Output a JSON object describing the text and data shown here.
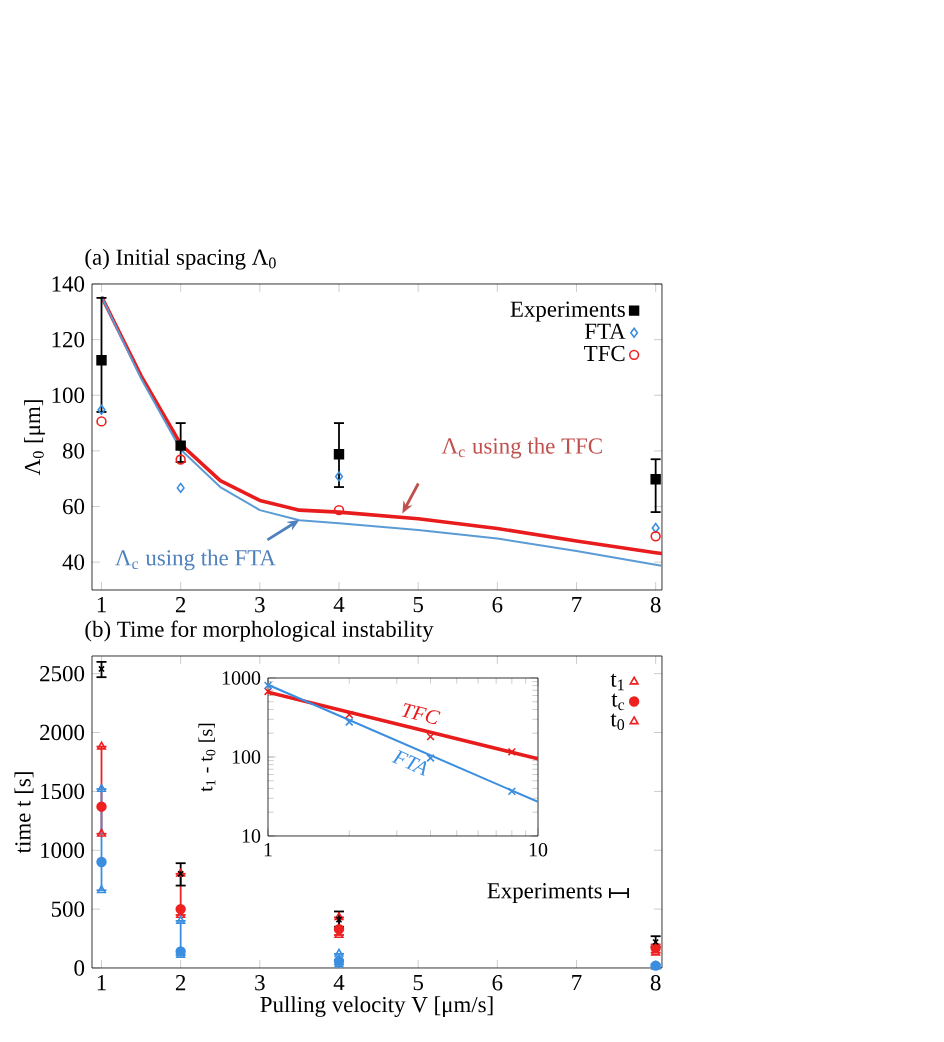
{
  "chart_data": [
    {
      "type": "scatter",
      "title": "(a) Initial spacing Λ$_{0}$",
      "ylabel": "Λ$_{0}$ [μm]",
      "x": [
        1,
        2,
        4,
        8
      ],
      "xlim": [
        0.88,
        8.08
      ],
      "ylim": [
        30,
        140
      ],
      "xticks": [
        1,
        2,
        3,
        4,
        5,
        6,
        7,
        8
      ],
      "yticks": [
        40,
        60,
        80,
        100,
        120,
        140
      ],
      "legend": "top right",
      "annotations": [
        {
          "text": "Λ$_{c}$ using the TFC",
          "x": 4.8,
          "y": 57.5
        },
        {
          "text": "Λ$_{c}$ using the FTA",
          "x": 3.5,
          "y": 55.2
        }
      ],
      "series": [
        {
          "type": "line",
          "marker": "none",
          "color": "#e81c1c",
          "x": [
            1,
            1.5,
            2,
            2.5,
            3,
            3.5,
            4,
            5,
            6,
            7,
            8,
            8.08
          ],
          "values": [
            135.5,
            107,
            82.4,
            69.3,
            62.2,
            58.7,
            58,
            55.6,
            52.1,
            47.6,
            43.4,
            43.1
          ]
        },
        {
          "type": "line",
          "marker": "none",
          "color": "#5b9bd5",
          "x": [
            1,
            1.5,
            2,
            2.5,
            3,
            3.5,
            4,
            5,
            6,
            7,
            8,
            8.08
          ],
          "values": [
            135.5,
            106,
            80.5,
            67,
            58.7,
            55.1,
            54,
            51.6,
            48.5,
            44,
            39.1,
            38.7
          ]
        },
        {
          "name": "Experiments",
          "marker": "square",
          "color": "#000000",
          "values": [
            112.6,
            81.9,
            78.8,
            69.8
          ],
          "errors": [
            [
              94,
              135
            ],
            [
              76,
              90
            ],
            [
              67,
              90
            ],
            [
              58,
              77
            ]
          ]
        },
        {
          "name": "FTA",
          "marker": "diamond",
          "color": "#3a8ee0",
          "values": [
            94.8,
            66.7,
            70.8,
            52.3
          ]
        },
        {
          "name": "TFC",
          "marker": "circle",
          "color": "#ee2020",
          "values": [
            90.6,
            76.9,
            58.7,
            49.3
          ]
        }
      ]
    },
    {
      "type": "scatter",
      "title": "(b) Time for morphological instability",
      "xlabel": "Pulling velocity V [μm/s]",
      "ylabel": "time t [s]",
      "x": [
        1,
        2,
        4,
        8
      ],
      "xlim": [
        0.88,
        8.08
      ],
      "ylim": [
        0,
        2650
      ],
      "xticks": [
        1,
        2,
        3,
        4,
        5,
        6,
        7,
        8
      ],
      "yticks": [
        0,
        500,
        1000,
        1500,
        2000,
        2500
      ],
      "legend": "top right",
      "series": [
        {
          "name": "t$_{1}$",
          "marker": "triangle",
          "color": "#ee2020",
          "values": [
            1880,
            800,
            430,
            null
          ]
        },
        {
          "name": "t$_{c}$",
          "marker": "circle",
          "color": "#ee2020",
          "values": [
            1370,
            500,
            330,
            170
          ],
          "errors": [
            [
              1140,
              1880
            ],
            [
              450,
              800
            ],
            [
              280,
              430
            ],
            [
              130,
              200
            ]
          ]
        },
        {
          "name": "t$_{0}$",
          "marker": "triangle",
          "color": "#ee2020",
          "values": [
            1140,
            450,
            280,
            130
          ]
        },
        {
          "marker": "triangle",
          "color": "#3a8ee0",
          "values": [
            1520,
            400,
            120,
            null
          ]
        },
        {
          "marker": "circle",
          "color": "#3a8ee0",
          "values": [
            900,
            140,
            60,
            20
          ],
          "errors": [
            [
              660,
              1520
            ],
            [
              110,
              400
            ],
            [
              30,
              120
            ],
            [
              10,
              30
            ]
          ]
        },
        {
          "marker": "triangle",
          "color": "#3a8ee0",
          "values": [
            660,
            110,
            30,
            10
          ]
        },
        {
          "name": "Experiments",
          "marker": "cross",
          "color": "#000000",
          "values": [
            2540,
            800,
            410,
            220
          ],
          "errors": [
            [
              2470,
              2600
            ],
            [
              700,
              890
            ],
            [
              350,
              480
            ],
            [
              180,
              270
            ]
          ]
        }
      ]
    },
    {
      "type": "line",
      "ylabel": "t$_{1}$ - t$_{0}$ [s]",
      "log": "xy",
      "xlim": [
        1,
        10
      ],
      "ylim": [
        10,
        1000
      ],
      "xticks": [
        1,
        10
      ],
      "yticks": [
        10,
        100,
        1000
      ],
      "legend": false,
      "series": [
        {
          "name": "TFC",
          "marker": "none",
          "color": "#e81c1c",
          "x": [
            1,
            10
          ],
          "values": [
            660,
            95
          ]
        },
        {
          "name": "FTA",
          "marker": "none",
          "color": "#3a8ee0",
          "x": [
            1,
            10
          ],
          "values": [
            820,
            27
          ]
        },
        {
          "type": "scatter",
          "marker": "cross",
          "color": "#e81c1c",
          "x": [
            1,
            2,
            4,
            8
          ],
          "values": [
            676,
            344,
            181,
            116
          ]
        },
        {
          "type": "scatter",
          "marker": "cross",
          "color": "#3a8ee0",
          "x": [
            1,
            2,
            4,
            8
          ],
          "values": [
            805,
            277,
            97,
            36.7
          ]
        }
      ]
    }
  ]
}
